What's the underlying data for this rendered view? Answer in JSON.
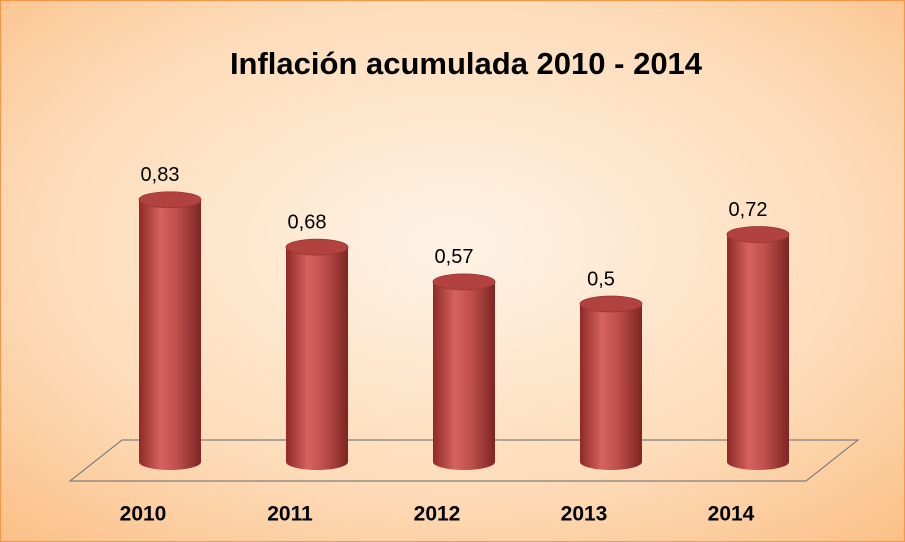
{
  "chart_data": {
    "type": "bar3d",
    "title": "Inflación acumulada 2010 - 2014",
    "categories": [
      "2010",
      "2011",
      "2012",
      "2013",
      "2014"
    ],
    "values": [
      0.83,
      0.68,
      0.57,
      0.5,
      0.72
    ],
    "value_labels": [
      "0,83",
      "0,68",
      "0,57",
      "0,5",
      "0,72"
    ],
    "color": "#c0504d"
  }
}
